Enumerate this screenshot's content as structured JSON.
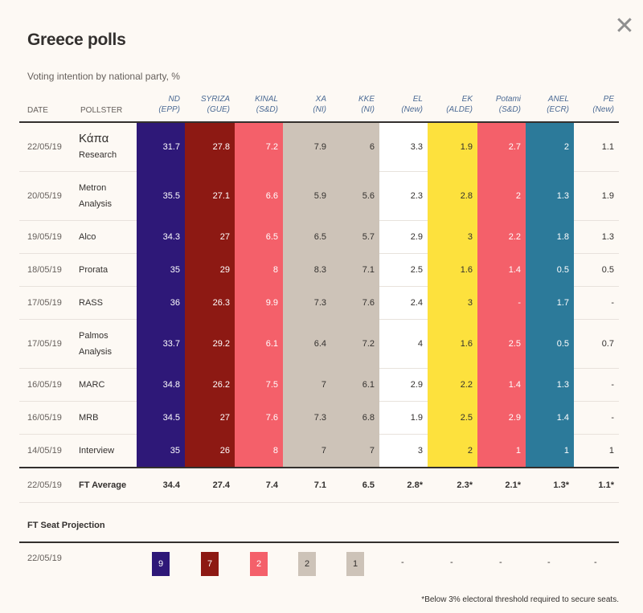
{
  "title": "Greece polls",
  "subtitle": "Voting intention by national party, %",
  "close_icon": "✕",
  "colors": {
    "ND": "#2e1878",
    "SYRIZA": "#8d1913",
    "KINAL": "#f4606a",
    "XA": "#cdc3b8",
    "KKE": "#cdc3b8",
    "EL": "#ffffff",
    "EK": "#fde13d",
    "Potami": "#f4606a",
    "ANEL": "#2c7a9a",
    "PE": "#fdf9f4"
  },
  "headers": {
    "date": "DATE",
    "pollster": "POLLSTER",
    "parties": [
      {
        "name": "ND",
        "group": "(EPP)"
      },
      {
        "name": "SYRIZA",
        "group": "(GUE)"
      },
      {
        "name": "KINAL",
        "group": "(S&D)"
      },
      {
        "name": "XA",
        "group": "(NI)"
      },
      {
        "name": "KKE",
        "group": "(NI)"
      },
      {
        "name": "EL",
        "group": "(New)"
      },
      {
        "name": "EK",
        "group": "(ALDE)"
      },
      {
        "name": "Potami",
        "group": "(S&D)"
      },
      {
        "name": "ANEL",
        "group": "(ECR)"
      },
      {
        "name": "PE",
        "group": "(New)"
      }
    ]
  },
  "rows": [
    {
      "date": "22/05/19",
      "pollster_l1": "Κάπα",
      "pollster_l2": "Research",
      "values": [
        "31.7",
        "27.8",
        "7.2",
        "7.9",
        "6",
        "3.3",
        "1.9",
        "2.7",
        "2",
        "1.1"
      ]
    },
    {
      "date": "20/05/19",
      "pollster_l1": "Metron",
      "pollster_l2": "Analysis",
      "values": [
        "35.5",
        "27.1",
        "6.6",
        "5.9",
        "5.6",
        "2.3",
        "2.8",
        "2",
        "1.3",
        "1.9"
      ]
    },
    {
      "date": "19/05/19",
      "pollster_l1": "Alco",
      "pollster_l2": "",
      "values": [
        "34.3",
        "27",
        "6.5",
        "6.5",
        "5.7",
        "2.9",
        "3",
        "2.2",
        "1.8",
        "1.3"
      ]
    },
    {
      "date": "18/05/19",
      "pollster_l1": "Prorata",
      "pollster_l2": "",
      "values": [
        "35",
        "29",
        "8",
        "8.3",
        "7.1",
        "2.5",
        "1.6",
        "1.4",
        "0.5",
        "0.5"
      ]
    },
    {
      "date": "17/05/19",
      "pollster_l1": "RASS",
      "pollster_l2": "",
      "values": [
        "36",
        "26.3",
        "9.9",
        "7.3",
        "7.6",
        "2.4",
        "3",
        "-",
        "1.7",
        "-"
      ]
    },
    {
      "date": "17/05/19",
      "pollster_l1": "Palmos",
      "pollster_l2": "Analysis",
      "values": [
        "33.7",
        "29.2",
        "6.1",
        "6.4",
        "7.2",
        "4",
        "1.6",
        "2.5",
        "0.5",
        "0.7"
      ]
    },
    {
      "date": "16/05/19",
      "pollster_l1": "MARC",
      "pollster_l2": "",
      "values": [
        "34.8",
        "26.2",
        "7.5",
        "7",
        "6.1",
        "2.9",
        "2.2",
        "1.4",
        "1.3",
        "-"
      ]
    },
    {
      "date": "16/05/19",
      "pollster_l1": "MRB",
      "pollster_l2": "",
      "values": [
        "34.5",
        "27",
        "7.6",
        "7.3",
        "6.8",
        "1.9",
        "2.5",
        "2.9",
        "1.4",
        "-"
      ]
    },
    {
      "date": "14/05/19",
      "pollster_l1": "Interview",
      "pollster_l2": "",
      "values": [
        "35",
        "26",
        "8",
        "7",
        "7",
        "3",
        "2",
        "1",
        "1",
        "1"
      ]
    }
  ],
  "average": {
    "date": "22/05/19",
    "label": "FT Average",
    "values": [
      "34.4",
      "27.4",
      "7.4",
      "7.1",
      "6.5",
      "2.8*",
      "2.3*",
      "2.1*",
      "1.3*",
      "1.1*"
    ]
  },
  "seat_projection": {
    "title": "FT Seat Projection",
    "date": "22/05/19",
    "seats": [
      "9",
      "7",
      "2",
      "2",
      "1",
      "-",
      "-",
      "-",
      "-",
      "-"
    ]
  },
  "footnote": "*Below 3% electoral threshold required to secure seats."
}
